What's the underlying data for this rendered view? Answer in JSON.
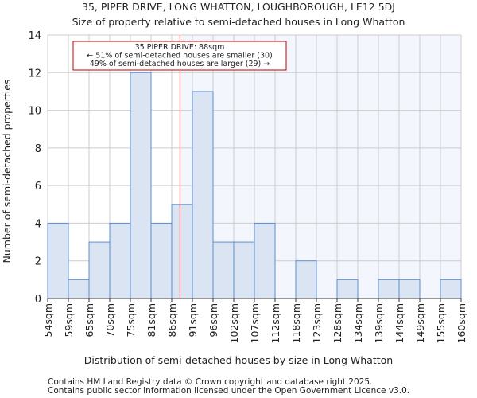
{
  "chart_data": {
    "type": "bar",
    "title": "35, PIPER DRIVE, LONG WHATTON, LOUGHBOROUGH, LE12 5DJ",
    "subtitle": "Size of property relative to semi-detached houses in Long Whatton",
    "xlabel": "Distribution of semi-detached houses by size in Long Whatton",
    "ylabel": "Number of semi-detached properties",
    "tick_labels": [
      "54sqm",
      "59sqm",
      "65sqm",
      "70sqm",
      "75sqm",
      "81sqm",
      "86sqm",
      "91sqm",
      "96sqm",
      "102sqm",
      "107sqm",
      "112sqm",
      "118sqm",
      "123sqm",
      "128sqm",
      "134sqm",
      "139sqm",
      "144sqm",
      "149sqm",
      "155sqm",
      "160sqm"
    ],
    "values": [
      4,
      1,
      3,
      4,
      12,
      4,
      5,
      11,
      3,
      3,
      4,
      0,
      2,
      0,
      1,
      0,
      1,
      1,
      0,
      1
    ],
    "ylim": [
      0,
      14
    ],
    "yticks": [
      0,
      2,
      4,
      6,
      8,
      10,
      12,
      14
    ],
    "grid": true,
    "marker_value": 88,
    "annotation": [
      "35 PIPER DRIVE: 88sqm",
      "← 51% of semi-detached houses are smaller (30)",
      "49% of semi-detached houses are larger (29) →"
    ],
    "colors": {
      "bar_fill": "#dae4f3",
      "bar_edge": "#5b8fd6",
      "marker": "#c00000",
      "highlight_bg": "#f3f6fd"
    }
  },
  "footer": [
    "Contains HM Land Registry data © Crown copyright and database right 2025.",
    "Contains public sector information licensed under the Open Government Licence v3.0."
  ]
}
